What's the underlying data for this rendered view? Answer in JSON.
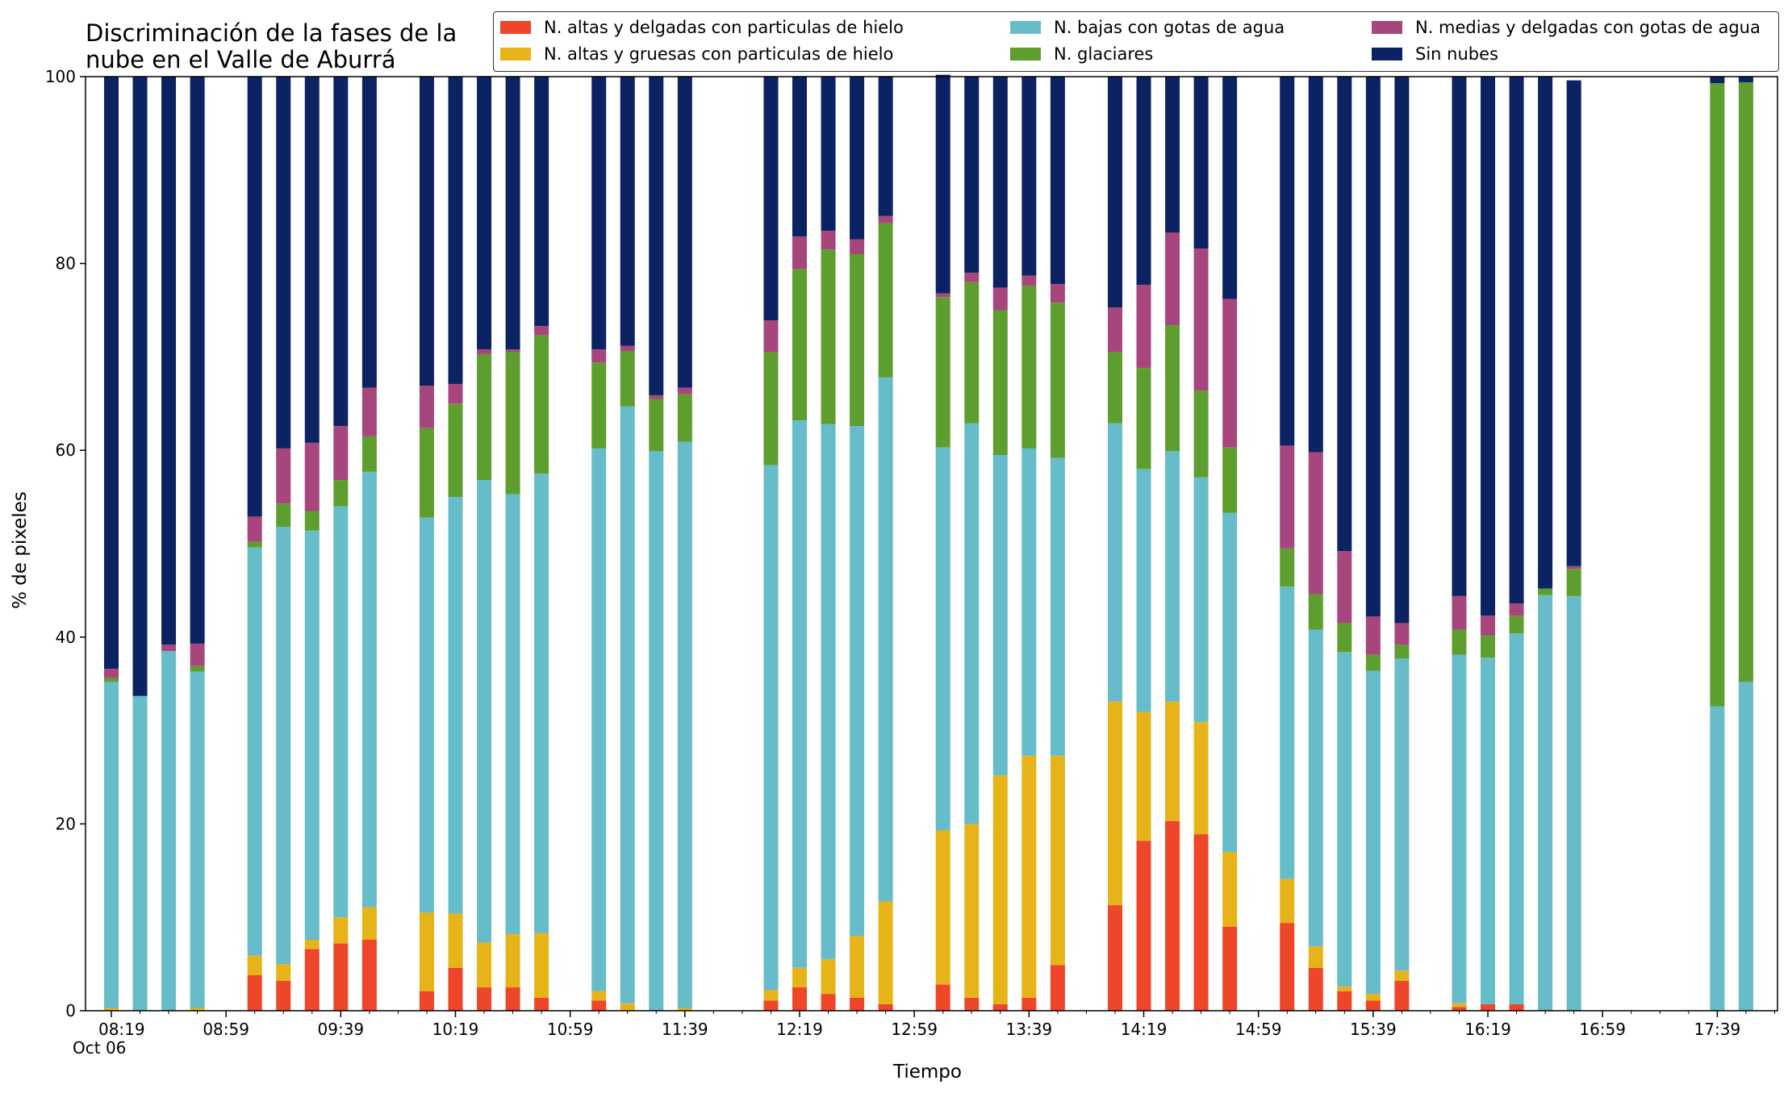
{
  "chart_data": {
    "type": "bar",
    "stacked": true,
    "title_lines": [
      "Discriminación de la fases de la",
      "nube en el Valle de Aburrá"
    ],
    "xlabel": "Tiempo",
    "ylabel": "% de pixeles",
    "ylim": [
      0,
      100
    ],
    "yticks": [
      0,
      20,
      40,
      60,
      80,
      100
    ],
    "xlim": [
      "08:10",
      "18:00"
    ],
    "xtick_labels": [
      "08:19",
      "08:59",
      "09:39",
      "10:19",
      "10:59",
      "11:39",
      "12:19",
      "12:59",
      "13:39",
      "14:19",
      "14:59",
      "15:39",
      "16:19",
      "16:59",
      "17:39"
    ],
    "date_label": "Oct 06",
    "grid": false,
    "legend_position": "top-right",
    "categories": [
      "08:19",
      "08:29",
      "08:39",
      "08:49",
      "09:09",
      "09:19",
      "09:29",
      "09:39",
      "09:49",
      "10:09",
      "10:19",
      "10:29",
      "10:39",
      "10:49",
      "11:09",
      "11:19",
      "11:29",
      "11:39",
      "12:09",
      "12:19",
      "12:29",
      "12:39",
      "12:49",
      "13:09",
      "13:19",
      "13:29",
      "13:39",
      "13:49",
      "14:09",
      "14:19",
      "14:29",
      "14:39",
      "14:49",
      "15:09",
      "15:19",
      "15:29",
      "15:39",
      "15:49",
      "16:09",
      "16:19",
      "16:29",
      "16:39",
      "16:49",
      "17:39",
      "17:49"
    ],
    "series": [
      {
        "name": "N. altas y delgadas con particulas de hielo",
        "color": "#ee4628",
        "values": [
          0,
          0,
          0,
          0,
          3.8,
          3.2,
          6.6,
          7.2,
          7.6,
          2.1,
          4.6,
          2.5,
          2.5,
          1.4,
          1.1,
          0,
          0,
          0,
          1.1,
          2.5,
          1.8,
          1.4,
          0.7,
          2.8,
          1.4,
          0.7,
          1.4,
          4.9,
          11.3,
          18.2,
          20.3,
          18.9,
          9.0,
          9.4,
          4.6,
          2.1,
          1.1,
          3.2,
          0.4,
          0.7,
          0.7,
          0,
          0,
          0,
          0
        ]
      },
      {
        "name": "N. altas y gruesas con particulas de hielo",
        "color": "#e6b419",
        "values": [
          0.3,
          0,
          0,
          0.3,
          2.1,
          1.8,
          1.0,
          2.8,
          3.5,
          8.4,
          5.8,
          4.8,
          5.7,
          6.9,
          1.0,
          0.8,
          0,
          0.3,
          1.1,
          2.1,
          3.7,
          6.6,
          11.0,
          16.5,
          18.6,
          24.5,
          25.9,
          22.4,
          21.8,
          13.8,
          12.8,
          12.0,
          8.0,
          4.7,
          2.3,
          0.5,
          0.7,
          1.1,
          0.4,
          0,
          0,
          0,
          0,
          0,
          0
        ]
      },
      {
        "name": "N. bajas con gotas de agua",
        "color": "#66bcc8",
        "values": [
          34.9,
          33.7,
          38.5,
          36.0,
          43.7,
          46.8,
          43.8,
          44.0,
          46.6,
          42.3,
          44.6,
          49.5,
          47.1,
          49.2,
          58.1,
          63.9,
          59.9,
          60.6,
          56.2,
          58.6,
          57.3,
          54.6,
          56.1,
          41.0,
          42.9,
          34.3,
          32.9,
          31.9,
          29.8,
          26.0,
          26.8,
          26.2,
          36.3,
          31.3,
          33.9,
          35.8,
          34.6,
          33.4,
          37.3,
          37.1,
          39.7,
          44.5,
          44.4,
          32.6,
          35.2
        ]
      },
      {
        "name": "N. glaciares",
        "color": "#5d9e2e",
        "values": [
          0.4,
          0,
          0,
          0.6,
          0.6,
          2.5,
          2.1,
          2.8,
          3.8,
          9.6,
          10.0,
          13.5,
          15.2,
          14.8,
          9.2,
          5.9,
          5.6,
          5.1,
          12.1,
          16.2,
          18.7,
          18.4,
          16.5,
          16.1,
          15.1,
          15.5,
          17.4,
          16.6,
          7.6,
          10.8,
          13.5,
          9.3,
          7.0,
          4.1,
          3.8,
          3.1,
          1.7,
          1.5,
          2.7,
          2.4,
          1.9,
          0.7,
          2.9,
          66.7,
          64.2
        ]
      },
      {
        "name": "N. medias y delgadas con gotas de agua",
        "color": "#a6467c",
        "values": [
          1.0,
          0,
          0.7,
          2.4,
          2.7,
          5.9,
          7.3,
          5.8,
          5.2,
          4.5,
          2.1,
          0.5,
          0.3,
          1.0,
          1.4,
          0.6,
          0.4,
          0.7,
          3.4,
          3.5,
          2.0,
          1.6,
          0.8,
          0.4,
          1.0,
          2.4,
          1.1,
          2.0,
          4.8,
          8.9,
          9.9,
          15.2,
          15.9,
          11.0,
          15.2,
          7.7,
          4.1,
          2.3,
          3.6,
          2.1,
          1.3,
          0,
          0.3,
          0,
          0
        ]
      },
      {
        "name": "Sin nubes",
        "color": "#0b2263",
        "values": [
          63.4,
          66.3,
          60.8,
          60.7,
          47.1,
          39.8,
          39.2,
          37.4,
          33.3,
          33.1,
          32.9,
          29.2,
          29.2,
          26.7,
          29.2,
          28.8,
          34.1,
          33.3,
          26.1,
          17.1,
          16.5,
          17.4,
          14.9,
          23.4,
          21.0,
          22.6,
          21.3,
          22.2,
          24.7,
          22.3,
          16.7,
          18.4,
          23.8,
          39.5,
          40.2,
          50.8,
          57.8,
          58.5,
          55.6,
          57.7,
          56.4,
          54.8,
          52.0,
          0.7,
          0.6
        ]
      }
    ]
  }
}
